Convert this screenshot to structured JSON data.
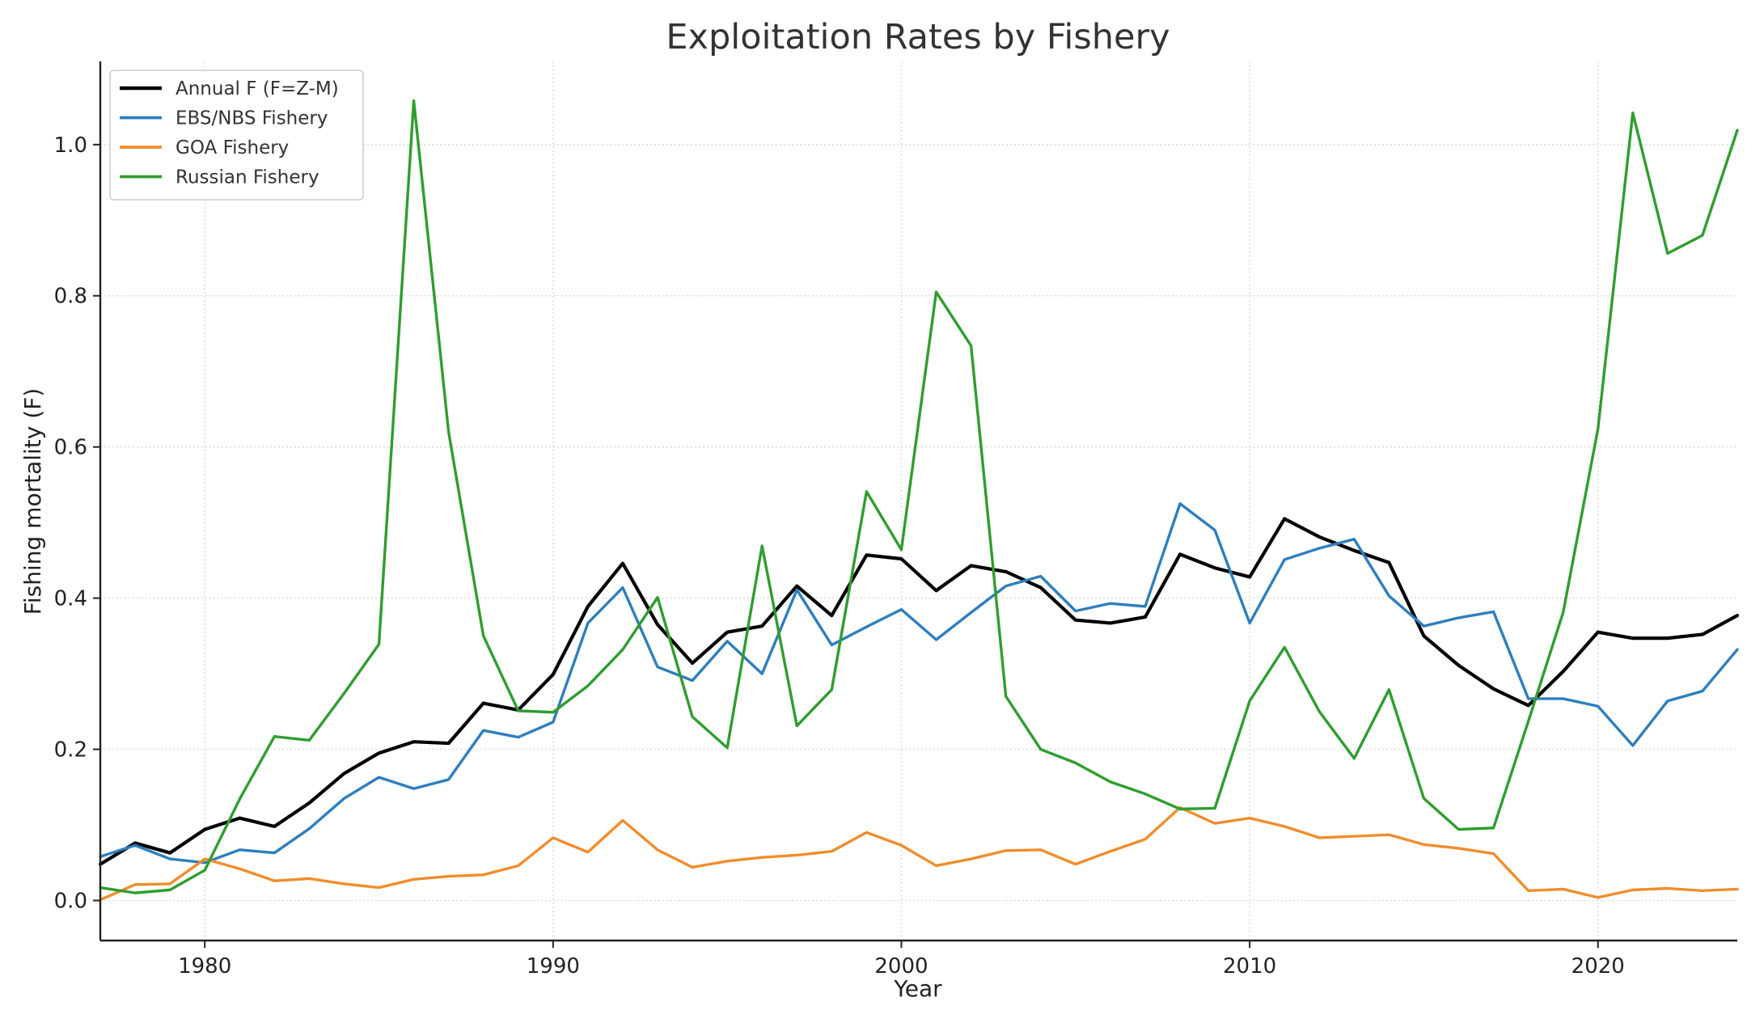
{
  "chart_data": {
    "type": "line",
    "title": "Exploitation Rates by Fishery",
    "xlabel": "Year",
    "ylabel": "Fishing mortality (F)",
    "xlim": [
      1977,
      2024
    ],
    "ylim": [
      -0.053,
      1.11
    ],
    "xticks": [
      1980,
      1990,
      2000,
      2010,
      2020
    ],
    "yticks": [
      0.0,
      0.2,
      0.4,
      0.6,
      0.8,
      1.0
    ],
    "grid": true,
    "legend_position": "top-left",
    "x": [
      1977,
      1978,
      1979,
      1980,
      1981,
      1982,
      1983,
      1984,
      1985,
      1986,
      1987,
      1988,
      1989,
      1990,
      1991,
      1992,
      1993,
      1994,
      1995,
      1996,
      1997,
      1998,
      1999,
      2000,
      2001,
      2002,
      2003,
      2004,
      2005,
      2006,
      2007,
      2008,
      2009,
      2010,
      2011,
      2012,
      2013,
      2014,
      2015,
      2016,
      2017,
      2018,
      2019,
      2020,
      2021,
      2022,
      2023,
      2024
    ],
    "series": [
      {
        "name": "Annual F (F=Z-M)",
        "color": "#000000",
        "width": 4.2,
        "values": [
          0.048,
          0.076,
          0.063,
          0.094,
          0.109,
          0.098,
          0.129,
          0.168,
          0.195,
          0.21,
          0.208,
          0.261,
          0.252,
          0.299,
          0.389,
          0.446,
          0.365,
          0.314,
          0.355,
          0.363,
          0.416,
          0.377,
          0.457,
          0.452,
          0.41,
          0.443,
          0.435,
          0.414,
          0.371,
          0.367,
          0.375,
          0.458,
          0.44,
          0.428,
          0.505,
          0.481,
          0.463,
          0.447,
          0.35,
          0.311,
          0.28,
          0.258,
          0.303,
          0.355,
          0.347,
          0.347,
          0.352,
          0.377
        ]
      },
      {
        "name": "EBS/NBS Fishery",
        "color": "#2f7ebc",
        "width": 3.4,
        "values": [
          0.058,
          0.073,
          0.055,
          0.05,
          0.067,
          0.063,
          0.095,
          0.135,
          0.163,
          0.148,
          0.16,
          0.225,
          0.216,
          0.236,
          0.367,
          0.414,
          0.309,
          0.291,
          0.343,
          0.3,
          0.411,
          0.338,
          0.362,
          0.385,
          0.345,
          0.381,
          0.416,
          0.429,
          0.383,
          0.393,
          0.389,
          0.525,
          0.49,
          0.367,
          0.451,
          0.466,
          0.478,
          0.403,
          0.363,
          0.374,
          0.382,
          0.267,
          0.267,
          0.257,
          0.205,
          0.264,
          0.277,
          0.332
        ]
      },
      {
        "name": "GOA Fishery",
        "color": "#f08d2c",
        "width": 3.4,
        "values": [
          0.001,
          0.021,
          0.022,
          0.055,
          0.042,
          0.026,
          0.029,
          0.022,
          0.017,
          0.028,
          0.032,
          0.034,
          0.046,
          0.083,
          0.064,
          0.106,
          0.067,
          0.044,
          0.052,
          0.057,
          0.06,
          0.065,
          0.09,
          0.073,
          0.046,
          0.055,
          0.066,
          0.067,
          0.048,
          0.065,
          0.081,
          0.123,
          0.102,
          0.109,
          0.098,
          0.083,
          0.085,
          0.087,
          0.074,
          0.069,
          0.062,
          0.013,
          0.015,
          0.004,
          0.014,
          0.016,
          0.013,
          0.015
        ]
      },
      {
        "name": "Russian Fishery",
        "color": "#2f9d2f",
        "width": 3.4,
        "values": [
          0.017,
          0.01,
          0.014,
          0.04,
          0.134,
          0.217,
          0.212,
          0.274,
          0.339,
          1.058,
          0.62,
          0.35,
          0.251,
          0.249,
          0.284,
          0.332,
          0.401,
          0.243,
          0.202,
          0.469,
          0.231,
          0.279,
          0.541,
          0.464,
          0.805,
          0.734,
          0.27,
          0.2,
          0.182,
          0.157,
          0.141,
          0.121,
          0.122,
          0.264,
          0.335,
          0.25,
          0.188,
          0.279,
          0.135,
          0.094,
          0.096,
          0.237,
          0.381,
          0.624,
          1.042,
          0.856,
          0.88,
          1.019
        ]
      }
    ]
  }
}
